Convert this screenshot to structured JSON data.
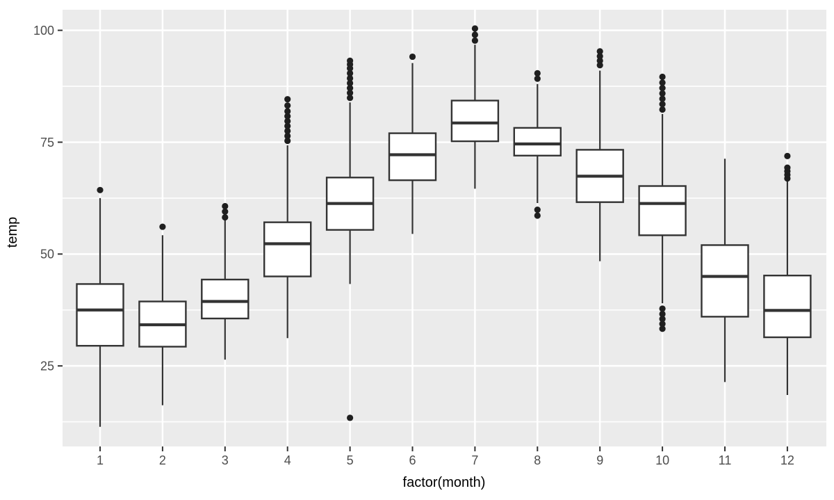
{
  "chart_data": {
    "type": "boxplot",
    "title": "",
    "xlabel": "factor(month)",
    "ylabel": "temp",
    "x_tick_labels": [
      "1",
      "2",
      "3",
      "4",
      "5",
      "6",
      "7",
      "8",
      "9",
      "10",
      "11",
      "12"
    ],
    "y_ticks": [
      25,
      50,
      75,
      100
    ],
    "y_minor_ticks": [
      12.5,
      37.5,
      62.5,
      87.5
    ],
    "ylim": [
      7.0,
      104.6
    ],
    "legend": "none",
    "grid": "white major gridlines at y ticks and each month; white minor horizontal gridlines; grey panel",
    "colors": {
      "panel_bg": "#ebebeb",
      "grid": "#ffffff",
      "box_fill": "#ffffff",
      "box_stroke": "#333333",
      "outlier": "#1f1f1f",
      "tick_label": "#4d4d4d",
      "axis_title": "#000000",
      "tick_mark": "#333333"
    },
    "months": [
      {
        "label": "1",
        "whisker_low": 11.4,
        "q1": 29.5,
        "median": 37.5,
        "q3": 43.3,
        "whisker_high": 62.5,
        "outliers_low": [],
        "outliers_high": [
          64.3
        ]
      },
      {
        "label": "2",
        "whisker_low": 16.2,
        "q1": 29.3,
        "median": 34.2,
        "q3": 39.4,
        "whisker_high": 54.2,
        "outliers_low": [],
        "outliers_high": [
          56.1
        ]
      },
      {
        "label": "3",
        "whisker_low": 26.4,
        "q1": 35.6,
        "median": 39.4,
        "q3": 44.3,
        "whisker_high": 57.5,
        "outliers_low": [],
        "outliers_high": [
          58.2,
          59.5,
          60.7
        ]
      },
      {
        "label": "4",
        "whisker_low": 31.2,
        "q1": 45.0,
        "median": 52.3,
        "q3": 57.1,
        "whisker_high": 74.3,
        "outliers_low": [],
        "outliers_high": [
          75.3,
          76.4,
          77.5,
          78.6,
          79.7,
          80.8,
          81.9,
          83.2,
          84.6
        ]
      },
      {
        "label": "5",
        "whisker_low": 43.3,
        "q1": 55.4,
        "median": 61.3,
        "q3": 67.1,
        "whisker_high": 83.9,
        "outliers_low": [
          13.4
        ],
        "outliers_high": [
          84.9,
          86.0,
          87.1,
          88.2,
          89.3,
          90.4,
          91.5,
          92.4,
          93.2
        ]
      },
      {
        "label": "6",
        "whisker_low": 54.5,
        "q1": 66.5,
        "median": 72.2,
        "q3": 77.0,
        "whisker_high": 92.7,
        "outliers_low": [],
        "outliers_high": [
          94.1
        ]
      },
      {
        "label": "7",
        "whisker_low": 64.6,
        "q1": 75.2,
        "median": 79.3,
        "q3": 84.3,
        "whisker_high": 96.8,
        "outliers_low": [],
        "outliers_high": [
          97.7,
          99.0,
          100.4
        ]
      },
      {
        "label": "8",
        "whisker_low": 61.4,
        "q1": 72.0,
        "median": 74.6,
        "q3": 78.2,
        "whisker_high": 88.0,
        "outliers_low": [
          58.6,
          59.9
        ],
        "outliers_high": [
          89.2,
          90.4
        ]
      },
      {
        "label": "9",
        "whisker_low": 48.4,
        "q1": 61.6,
        "median": 67.4,
        "q3": 73.3,
        "whisker_high": 91.0,
        "outliers_low": [],
        "outliers_high": [
          92.2,
          93.2,
          94.2,
          95.3
        ]
      },
      {
        "label": "10",
        "whisker_low": 39.0,
        "q1": 54.2,
        "median": 61.3,
        "q3": 65.2,
        "whisker_high": 81.3,
        "outliers_low": [
          33.3,
          34.4,
          35.5,
          36.6,
          37.8
        ],
        "outliers_high": [
          82.3,
          83.5,
          84.7,
          85.9,
          87.1,
          88.3,
          89.6
        ]
      },
      {
        "label": "11",
        "whisker_low": 21.4,
        "q1": 36.0,
        "median": 45.0,
        "q3": 52.0,
        "whisker_high": 71.3,
        "outliers_low": [],
        "outliers_high": []
      },
      {
        "label": "12",
        "whisker_low": 18.5,
        "q1": 31.4,
        "median": 37.4,
        "q3": 45.2,
        "whisker_high": 66.3,
        "outliers_low": [],
        "outliers_high": [
          66.9,
          67.7,
          68.5,
          69.3,
          71.9
        ]
      }
    ]
  }
}
